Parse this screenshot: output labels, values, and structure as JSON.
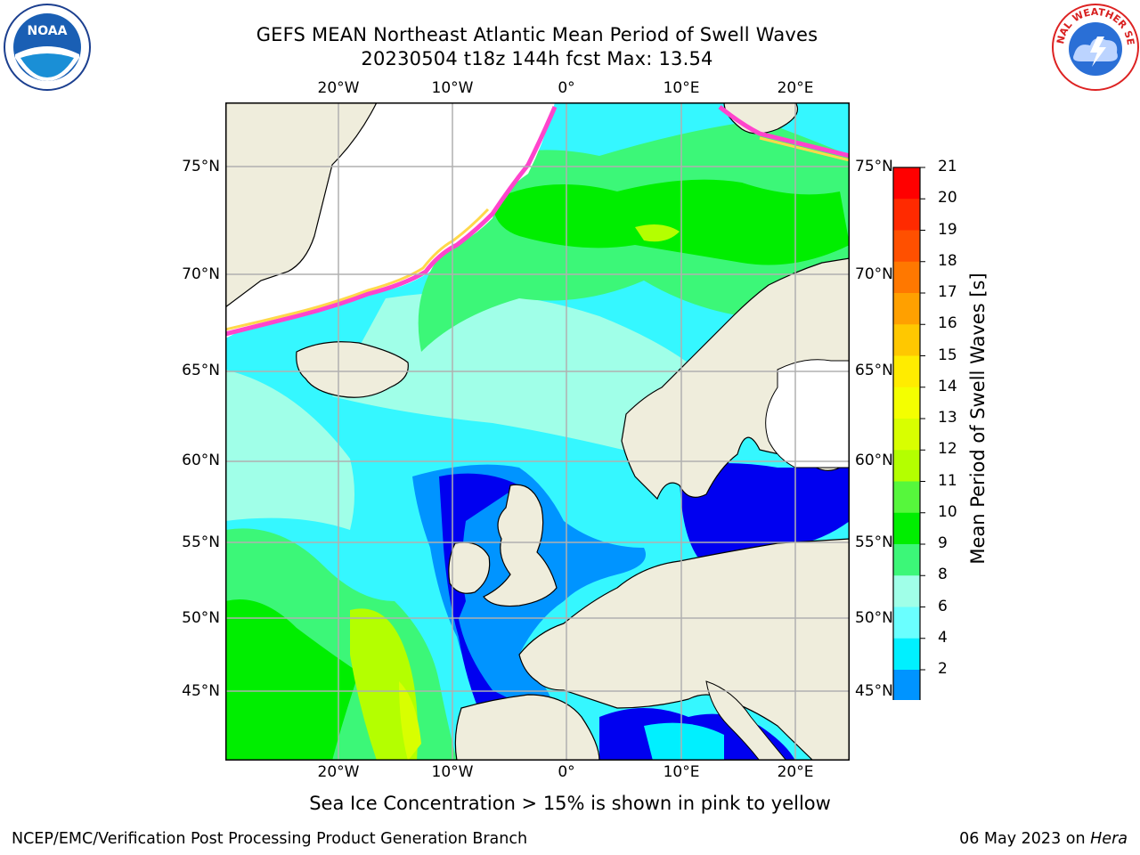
{
  "title": {
    "line1": "GEFS MEAN Northeast Atlantic Mean Period of Swell Waves",
    "line2": "20230504 t18z 144h fcst   Max: 13.54"
  },
  "logos": {
    "left": {
      "name": "noaa-logo",
      "text": "NOAA"
    },
    "right": {
      "name": "nws-logo",
      "text": "NATIONAL WEATHER SERVICE"
    }
  },
  "map": {
    "lon_labels": [
      "20°W",
      "10°W",
      "0°",
      "10°E",
      "20°E"
    ],
    "lat_labels": [
      "75°N",
      "70°N",
      "65°N",
      "60°N",
      "55°N",
      "50°N",
      "45°N"
    ],
    "colors": {
      "land": "#efeddc",
      "ocean_default": "#35f7ff",
      "grid": "#b0b0b0"
    }
  },
  "colorbar": {
    "title": "Mean Period of Swell Waves [s]",
    "ticks": [
      "21",
      "20",
      "19",
      "18",
      "17",
      "16",
      "15",
      "14",
      "13",
      "12",
      "11",
      "10",
      "9",
      "8",
      "6",
      "4",
      "2"
    ],
    "colors": [
      "#ff0000",
      "#ff2a00",
      "#ff5000",
      "#ff7800",
      "#ffa000",
      "#ffc800",
      "#ffec00",
      "#f4ff00",
      "#d8ff00",
      "#b4ff00",
      "#56f73c",
      "#00ee00",
      "#3cf778",
      "#a0ffe8",
      "#6affff",
      "#00f0ff",
      "#0094ff",
      "#0000f0"
    ]
  },
  "note": "Sea Ice Concentration > 15% is shown in pink to yellow",
  "footer": {
    "left": "NCEP/EMC/Verification Post Processing Product Generation Branch",
    "date": "06 May 2023 on ",
    "machine": "Hera"
  }
}
